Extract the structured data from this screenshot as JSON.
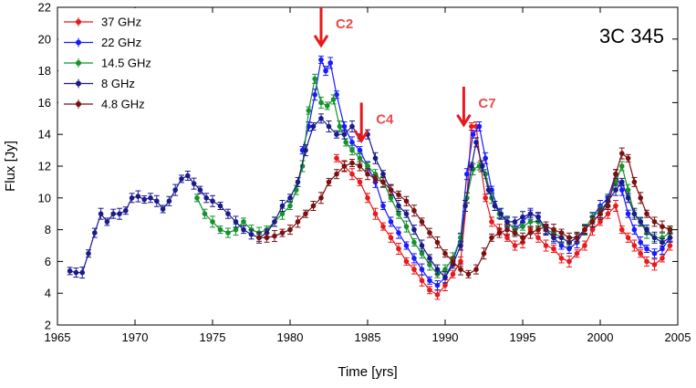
{
  "chart_data": {
    "type": "scatter",
    "title": "3C 345",
    "xlabel": "Time [yrs]",
    "ylabel": "Flux [Jy]",
    "xlim": [
      1965,
      2005
    ],
    "ylim": [
      2,
      22
    ],
    "xticks": [
      1965,
      1970,
      1975,
      1980,
      1985,
      1990,
      1995,
      2000,
      2005
    ],
    "yticks": [
      2,
      4,
      6,
      8,
      10,
      12,
      14,
      16,
      18,
      20,
      22
    ],
    "legend_position": "top-left",
    "annotations": [
      {
        "label": "C2",
        "x": 1982.0,
        "y_tip": 19.6,
        "y_tail": 22.0
      },
      {
        "label": "C4",
        "x": 1984.6,
        "y_tip": 13.6,
        "y_tail": 16.0
      },
      {
        "label": "C7",
        "x": 1991.2,
        "y_tip": 14.6,
        "y_tail": 17.0
      }
    ],
    "series": [
      {
        "name": "37 GHz",
        "color": "#e8191c",
        "x": [
          1983.0,
          1983.5,
          1984.0,
          1984.5,
          1985.0,
          1985.5,
          1986.0,
          1986.5,
          1987.0,
          1987.5,
          1988.0,
          1988.5,
          1989.0,
          1989.5,
          1990.0,
          1990.5,
          1991.0,
          1991.4,
          1991.7,
          1992.0,
          1992.3,
          1992.6,
          1993.0,
          1993.5,
          1994.0,
          1994.5,
          1995.0,
          1995.5,
          1996.0,
          1996.5,
          1997.0,
          1997.5,
          1998.0,
          1998.5,
          1999.0,
          1999.5,
          2000.0,
          2000.5,
          2001.0,
          2001.4,
          2001.8,
          2002.2,
          2002.6,
          2003.0,
          2003.5,
          2004.0,
          2004.5
        ],
        "y": [
          12.5,
          12.0,
          11.5,
          11.0,
          10.0,
          9.0,
          8.2,
          7.5,
          6.8,
          6.0,
          5.5,
          4.8,
          4.2,
          3.9,
          4.5,
          5.2,
          6.0,
          10.0,
          14.5,
          14.5,
          12.0,
          10.0,
          8.5,
          8.0,
          7.5,
          7.0,
          7.2,
          8.0,
          7.5,
          7.0,
          6.8,
          6.2,
          6.0,
          6.5,
          7.0,
          8.0,
          8.5,
          9.0,
          9.5,
          8.0,
          7.5,
          7.0,
          6.5,
          6.0,
          5.8,
          6.2,
          7.0
        ]
      },
      {
        "name": "22 GHz",
        "color": "#1a1aff",
        "x": [
          1980.8,
          1981.2,
          1981.6,
          1982.0,
          1982.3,
          1982.6,
          1983.0,
          1983.5,
          1984.0,
          1984.5,
          1985.0,
          1985.5,
          1986.0,
          1986.5,
          1987.0,
          1987.5,
          1988.0,
          1988.5,
          1989.0,
          1989.5,
          1990.0,
          1990.5,
          1991.0,
          1991.4,
          1991.8,
          1992.2,
          1992.6,
          1993.0,
          1993.5,
          1994.0,
          1994.5,
          1995.0,
          1995.5,
          1996.0,
          1996.5,
          1997.0,
          1997.5,
          1998.0,
          1998.5,
          1999.0,
          1999.5,
          2000.0,
          2000.5,
          2001.0,
          2001.4,
          2001.8,
          2002.2,
          2002.6,
          2003.0,
          2003.5,
          2004.0,
          2004.5
        ],
        "y": [
          13.0,
          14.5,
          16.5,
          18.7,
          18.0,
          18.5,
          16.5,
          14.5,
          13.5,
          13.0,
          12.0,
          11.0,
          9.5,
          8.5,
          7.8,
          7.0,
          6.2,
          5.5,
          4.8,
          4.5,
          5.0,
          6.0,
          7.5,
          11.5,
          14.0,
          14.5,
          12.5,
          10.5,
          9.0,
          8.5,
          8.0,
          8.5,
          9.0,
          8.8,
          8.0,
          7.5,
          7.0,
          6.8,
          7.2,
          8.0,
          8.8,
          9.5,
          10.0,
          11.5,
          10.5,
          9.0,
          8.0,
          7.2,
          6.8,
          6.5,
          6.8,
          7.5
        ]
      },
      {
        "name": "14.5 GHz",
        "color": "#15922b",
        "x": [
          1974.0,
          1974.5,
          1975.0,
          1975.5,
          1976.0,
          1976.5,
          1977.0,
          1977.5,
          1978.0,
          1978.5,
          1979.0,
          1979.5,
          1980.0,
          1980.4,
          1980.8,
          1981.2,
          1981.6,
          1982.0,
          1982.4,
          1982.8,
          1983.2,
          1983.6,
          1984.0,
          1984.5,
          1985.0,
          1985.5,
          1986.0,
          1986.5,
          1987.0,
          1987.5,
          1988.0,
          1988.5,
          1989.0,
          1989.5,
          1990.0,
          1990.5,
          1991.0,
          1991.4,
          1991.8,
          1992.2,
          1992.6,
          1993.0,
          1993.5,
          1994.0,
          1994.5,
          1995.0,
          1995.5,
          1996.0,
          1996.5,
          1997.0,
          1997.5,
          1998.0,
          1998.5,
          1999.0,
          1999.5,
          2000.0,
          2000.5,
          2001.0,
          2001.4,
          2001.8,
          2002.2,
          2002.6,
          2003.0,
          2003.5,
          2004.0,
          2004.5
        ],
        "y": [
          10.0,
          9.0,
          8.5,
          8.0,
          7.8,
          8.0,
          8.5,
          8.0,
          7.8,
          8.0,
          8.5,
          9.0,
          9.5,
          10.5,
          12.0,
          15.5,
          17.5,
          16.0,
          15.8,
          16.2,
          14.5,
          13.5,
          13.0,
          12.5,
          12.0,
          11.5,
          11.0,
          10.0,
          9.0,
          8.2,
          7.2,
          6.5,
          5.8,
          5.2,
          5.5,
          6.2,
          7.5,
          10.0,
          11.8,
          12.0,
          11.5,
          10.0,
          9.0,
          8.5,
          8.0,
          8.2,
          8.5,
          8.5,
          8.0,
          7.8,
          7.5,
          7.2,
          7.5,
          8.0,
          8.8,
          9.2,
          9.8,
          11.0,
          12.0,
          10.5,
          9.0,
          8.5,
          7.8,
          7.5,
          7.5,
          7.8
        ]
      },
      {
        "name": "8 GHz",
        "color": "#1a1a8c",
        "x": [
          1965.8,
          1966.2,
          1966.6,
          1967.0,
          1967.4,
          1967.8,
          1968.2,
          1968.6,
          1969.0,
          1969.4,
          1969.8,
          1970.2,
          1970.6,
          1971.0,
          1971.4,
          1971.8,
          1972.2,
          1972.6,
          1973.0,
          1973.4,
          1973.8,
          1974.2,
          1974.6,
          1975.0,
          1975.5,
          1976.0,
          1976.5,
          1977.0,
          1977.5,
          1978.0,
          1978.5,
          1979.0,
          1979.5,
          1980.0,
          1980.5,
          1981.0,
          1981.5,
          1982.0,
          1982.5,
          1983.0,
          1983.5,
          1984.0,
          1984.5,
          1985.0,
          1985.5,
          1986.0,
          1986.5,
          1987.0,
          1987.5,
          1988.0,
          1988.5,
          1989.0,
          1989.5,
          1990.0,
          1990.5,
          1991.0,
          1991.3,
          1991.7,
          1992.0,
          1992.4,
          1992.8,
          1993.2,
          1993.6,
          1994.0,
          1994.5,
          1995.0,
          1995.5,
          1996.0,
          1996.5,
          1997.0,
          1997.5,
          1998.0,
          1998.5,
          1999.0,
          1999.5,
          2000.0,
          2000.5,
          2001.0,
          2001.4,
          2001.8,
          2002.2,
          2002.6,
          2003.0,
          2003.5,
          2004.0,
          2004.5
        ],
        "y": [
          5.4,
          5.3,
          5.3,
          6.5,
          7.8,
          9.0,
          8.5,
          9.0,
          9.0,
          9.2,
          10.0,
          10.1,
          9.9,
          10.0,
          9.8,
          9.3,
          9.8,
          10.5,
          11.2,
          11.4,
          10.9,
          10.5,
          10.0,
          9.8,
          9.5,
          9.0,
          8.5,
          8.0,
          7.7,
          7.5,
          7.8,
          8.5,
          9.5,
          10.0,
          11.0,
          13.0,
          14.5,
          15.0,
          14.5,
          14.0,
          14.0,
          14.5,
          13.8,
          14.0,
          12.5,
          11.5,
          10.5,
          9.5,
          9.0,
          8.0,
          7.0,
          6.2,
          5.5,
          5.0,
          5.8,
          7.0,
          9.5,
          12.0,
          13.5,
          12.0,
          10.5,
          9.5,
          9.0,
          8.5,
          8.5,
          8.8,
          9.0,
          8.8,
          8.0,
          7.5,
          7.5,
          7.2,
          7.5,
          8.0,
          8.5,
          9.0,
          9.8,
          10.5,
          11.0,
          10.0,
          9.0,
          8.5,
          8.0,
          7.5,
          7.2,
          7.5
        ]
      },
      {
        "name": "4.8 GHz",
        "color": "#7a1010",
        "x": [
          1978.0,
          1978.5,
          1979.0,
          1979.5,
          1980.0,
          1980.5,
          1981.0,
          1981.5,
          1982.0,
          1982.5,
          1983.0,
          1983.5,
          1984.0,
          1984.5,
          1985.0,
          1985.5,
          1986.0,
          1986.5,
          1987.0,
          1987.5,
          1988.0,
          1988.5,
          1989.0,
          1989.5,
          1990.0,
          1990.5,
          1991.0,
          1991.5,
          1992.0,
          1992.5,
          1993.0,
          1993.5,
          1994.0,
          1994.5,
          1995.0,
          1995.5,
          1996.0,
          1996.5,
          1997.0,
          1997.5,
          1998.0,
          1998.5,
          1999.0,
          1999.5,
          2000.0,
          2000.5,
          2001.0,
          2001.4,
          2001.8,
          2002.2,
          2002.6,
          2003.0,
          2003.5,
          2004.0,
          2004.5
        ],
        "y": [
          7.5,
          7.5,
          7.6,
          7.8,
          8.0,
          8.5,
          9.0,
          9.5,
          10.0,
          11.0,
          11.5,
          12.0,
          12.2,
          12.0,
          11.5,
          11.2,
          11.0,
          10.5,
          10.2,
          9.8,
          9.2,
          8.5,
          7.8,
          7.2,
          6.5,
          6.0,
          5.5,
          5.2,
          5.5,
          6.5,
          7.5,
          7.8,
          8.0,
          7.8,
          7.5,
          7.8,
          8.0,
          8.2,
          8.0,
          7.8,
          7.5,
          7.5,
          8.0,
          8.5,
          9.0,
          9.5,
          11.5,
          12.8,
          12.5,
          11.0,
          10.0,
          9.0,
          8.5,
          8.2,
          8.0
        ]
      }
    ]
  }
}
